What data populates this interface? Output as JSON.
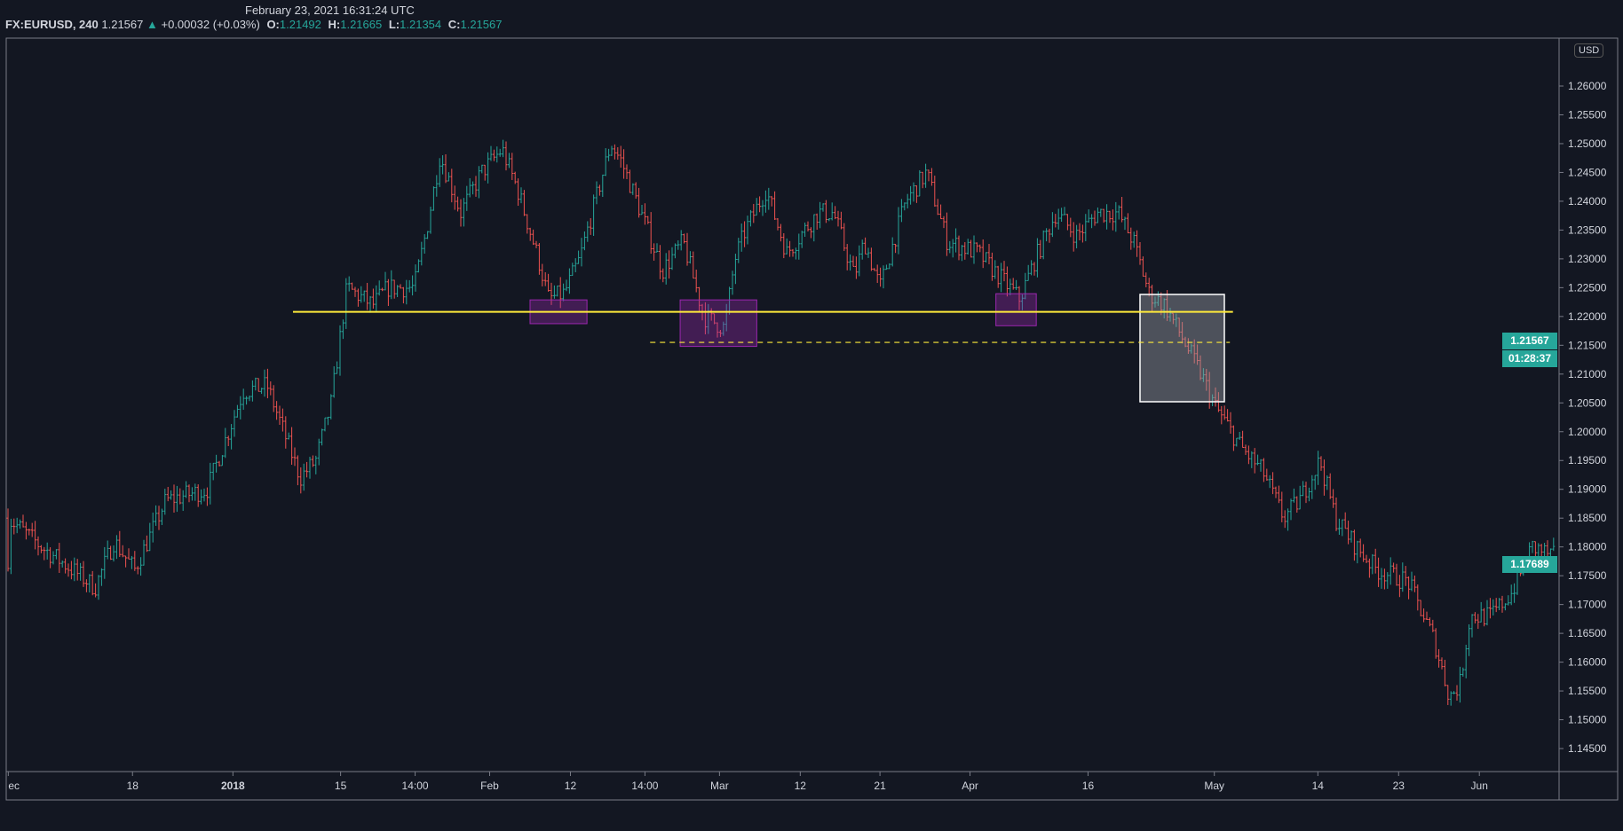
{
  "header": {
    "datetime": "February 23, 2021 16:31:24 UTC",
    "symbol": "FX:EURUSD, 240",
    "last": "1.21567",
    "change": "+0.00032 (+0.03%)",
    "open_label": "O:",
    "open": "1.21492",
    "high_label": "H:",
    "high": "1.21665",
    "low_label": "L:",
    "low": "1.21354",
    "close_label": "C:",
    "close": "1.21567"
  },
  "price_axis": {
    "currency": "USD",
    "ticks": [
      "1.26000",
      "1.25500",
      "1.25000",
      "1.24500",
      "1.24000",
      "1.23500",
      "1.23000",
      "1.22500",
      "1.22000",
      "1.21500",
      "1.21000",
      "1.20500",
      "1.20000",
      "1.19500",
      "1.19000",
      "1.18500",
      "1.18000",
      "1.17500",
      "1.17000",
      "1.16500",
      "1.16000",
      "1.15500",
      "1.15000",
      "1.14500"
    ],
    "current_price_label": "1.21567",
    "countdown_label": "01:28:37",
    "crosshair_price_label": "1.17689"
  },
  "time_axis": {
    "ticks": [
      "ec",
      "18",
      "2018",
      "15",
      "14:00",
      "Feb",
      "12",
      "14:00",
      "Mar",
      "12",
      "21",
      "Apr",
      "16",
      "May",
      "14",
      "23",
      "Jun"
    ]
  },
  "drawings": {
    "support_line_price": 1.2208,
    "dashed_line_price": 1.2155,
    "line_color": "#ffeb3b",
    "zone_color": "#9c27b0",
    "box_color": "#ffffff"
  },
  "colors": {
    "up": "#26a69a",
    "down": "#ef5350",
    "background": "#131722"
  },
  "price_path": [
    [
      8,
      1.185
    ],
    [
      40,
      1.18
    ],
    [
      70,
      1.176
    ],
    [
      92,
      1.173
    ],
    [
      110,
      1.181
    ],
    [
      130,
      1.176
    ],
    [
      160,
      1.188
    ],
    [
      200,
      1.19
    ],
    [
      235,
      1.207
    ],
    [
      258,
      1.208
    ],
    [
      290,
      1.192
    ],
    [
      305,
      1.195
    ],
    [
      320,
      1.205
    ],
    [
      335,
      1.225
    ],
    [
      360,
      1.222
    ],
    [
      375,
      1.225
    ],
    [
      400,
      1.225
    ],
    [
      412,
      1.235
    ],
    [
      425,
      1.248
    ],
    [
      445,
      1.238
    ],
    [
      465,
      1.245
    ],
    [
      485,
      1.249
    ],
    [
      500,
      1.242
    ],
    [
      520,
      1.23
    ],
    [
      530,
      1.223
    ],
    [
      545,
      1.224
    ],
    [
      560,
      1.23
    ],
    [
      575,
      1.24
    ],
    [
      590,
      1.25
    ],
    [
      600,
      1.247
    ],
    [
      615,
      1.24
    ],
    [
      640,
      1.228
    ],
    [
      660,
      1.233
    ],
    [
      680,
      1.22
    ],
    [
      700,
      1.218
    ],
    [
      710,
      1.23
    ],
    [
      720,
      1.235
    ],
    [
      740,
      1.242
    ],
    [
      760,
      1.231
    ],
    [
      790,
      1.238
    ],
    [
      805,
      1.238
    ],
    [
      825,
      1.227
    ],
    [
      835,
      1.233
    ],
    [
      850,
      1.225
    ],
    [
      875,
      1.24
    ],
    [
      895,
      1.245
    ],
    [
      915,
      1.233
    ],
    [
      945,
      1.231
    ],
    [
      965,
      1.227
    ],
    [
      985,
      1.223
    ],
    [
      1000,
      1.23
    ],
    [
      1020,
      1.238
    ],
    [
      1040,
      1.234
    ],
    [
      1060,
      1.238
    ],
    [
      1080,
      1.238
    ],
    [
      1095,
      1.233
    ],
    [
      1110,
      1.224
    ],
    [
      1125,
      1.222
    ],
    [
      1140,
      1.217
    ],
    [
      1160,
      1.21
    ],
    [
      1175,
      1.204
    ],
    [
      1200,
      1.197
    ],
    [
      1220,
      1.193
    ],
    [
      1240,
      1.185
    ],
    [
      1255,
      1.188
    ],
    [
      1275,
      1.195
    ],
    [
      1290,
      1.185
    ],
    [
      1310,
      1.18
    ],
    [
      1330,
      1.176
    ],
    [
      1360,
      1.174
    ],
    [
      1385,
      1.164
    ],
    [
      1400,
      1.154
    ],
    [
      1410,
      1.156
    ],
    [
      1420,
      1.168
    ],
    [
      1440,
      1.168
    ],
    [
      1460,
      1.172
    ],
    [
      1480,
      1.18
    ],
    [
      1506,
      1.178
    ]
  ]
}
